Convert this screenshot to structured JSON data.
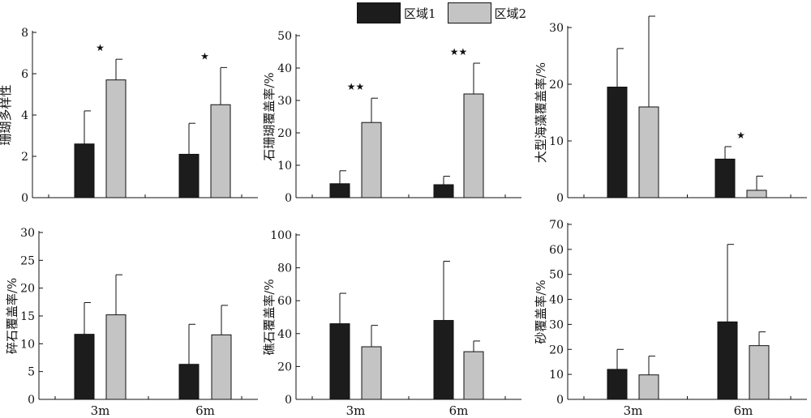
{
  "legend": [
    {
      "label": "区域1",
      "color": "#1c1c1c"
    },
    {
      "label": "区域2",
      "color": "#c4c4c4"
    }
  ],
  "chart_data": [
    {
      "type": "bar",
      "categories": [
        "3m",
        "6m"
      ],
      "ylabel": "珊瑚多样性",
      "ylim": [
        0,
        8
      ],
      "yticks": [
        0,
        2,
        4,
        6,
        8
      ],
      "xticks_shown": false,
      "series": [
        {
          "name": "区域1",
          "values": [
            2.6,
            2.1
          ],
          "errors": [
            1.6,
            1.5
          ]
        },
        {
          "name": "区域2",
          "values": [
            5.7,
            4.5
          ],
          "errors": [
            1.0,
            1.8
          ]
        }
      ],
      "significance": [
        "★",
        "★"
      ]
    },
    {
      "type": "bar",
      "categories": [
        "3m",
        "6m"
      ],
      "ylabel": "石珊瑚覆盖率/%",
      "ylim": [
        0,
        50
      ],
      "yticks": [
        0,
        10,
        20,
        30,
        40,
        50
      ],
      "xticks_shown": false,
      "series": [
        {
          "name": "区域1",
          "values": [
            4.3,
            4.0
          ],
          "errors": [
            4.0,
            2.6
          ]
        },
        {
          "name": "区域2",
          "values": [
            23.2,
            32.0
          ],
          "errors": [
            7.5,
            9.5
          ]
        }
      ],
      "significance": [
        "★★",
        "★★"
      ]
    },
    {
      "type": "bar",
      "categories": [
        "3m",
        "6m"
      ],
      "ylabel": "大型海藻覆盖率/%",
      "ylim": [
        0,
        30
      ],
      "yticks": [
        0,
        10,
        20,
        30
      ],
      "xticks_shown": false,
      "series": [
        {
          "name": "区域1",
          "values": [
            19.5,
            6.8
          ],
          "errors": [
            6.8,
            2.2
          ]
        },
        {
          "name": "区域2",
          "values": [
            16.0,
            1.3
          ],
          "errors": [
            16.0,
            2.5
          ]
        }
      ],
      "significance": [
        "",
        "★"
      ]
    },
    {
      "type": "bar",
      "categories": [
        "3m",
        "6m"
      ],
      "ylabel": "碎石覆盖率/%",
      "ylim": [
        0,
        30
      ],
      "yticks": [
        0,
        5,
        10,
        15,
        20,
        25,
        30
      ],
      "xticks_shown": true,
      "series": [
        {
          "name": "区域1",
          "values": [
            11.7,
            6.3
          ],
          "errors": [
            5.7,
            7.2
          ]
        },
        {
          "name": "区域2",
          "values": [
            15.2,
            11.6
          ],
          "errors": [
            7.2,
            5.3
          ]
        }
      ],
      "significance": [
        "",
        ""
      ]
    },
    {
      "type": "bar",
      "categories": [
        "3m",
        "6m"
      ],
      "ylabel": "礁石覆盖率/%",
      "ylim": [
        0,
        100
      ],
      "yticks": [
        0,
        20,
        40,
        60,
        80,
        100
      ],
      "xticks_shown": true,
      "series": [
        {
          "name": "区域1",
          "values": [
            46,
            48
          ],
          "errors": [
            18.5,
            36
          ]
        },
        {
          "name": "区域2",
          "values": [
            32,
            29
          ],
          "errors": [
            13,
            6.5
          ]
        }
      ],
      "significance": [
        "",
        ""
      ]
    },
    {
      "type": "bar",
      "categories": [
        "3m",
        "6m"
      ],
      "ylabel": "砂覆盖率/%",
      "ylim": [
        0,
        70
      ],
      "yticks": [
        0,
        10,
        20,
        30,
        40,
        50,
        60,
        70
      ],
      "xticks_shown": true,
      "series": [
        {
          "name": "区域1",
          "values": [
            12,
            31
          ],
          "errors": [
            8,
            31
          ]
        },
        {
          "name": "区域2",
          "values": [
            9.8,
            21.5
          ],
          "errors": [
            7.5,
            5.5
          ]
        }
      ],
      "significance": [
        "",
        ""
      ]
    }
  ]
}
